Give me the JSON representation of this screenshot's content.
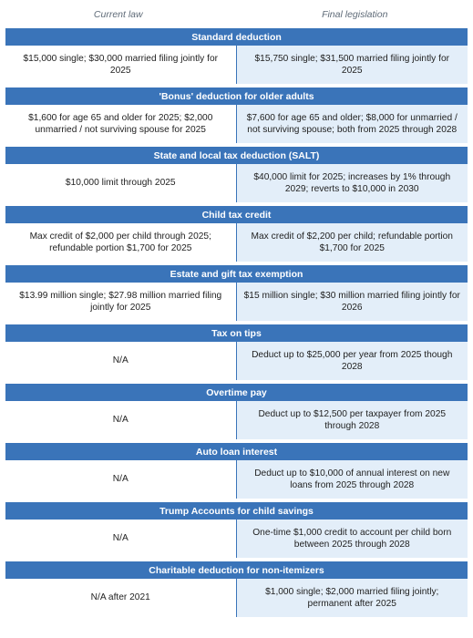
{
  "headers": {
    "current": "Current law",
    "final": "Final legislation"
  },
  "sections": [
    {
      "title": "Standard deduction",
      "current": "$15,000 single; $30,000 married filing jointly for 2025",
      "final": "$15,750 single; $31,500 married filing jointly for 2025"
    },
    {
      "title": "'Bonus' deduction for older adults",
      "current": "$1,600 for age 65 and older for 2025; $2,000 unmarried / not surviving spouse for 2025",
      "final": "$7,600 for age 65 and older; $8,000 for unmarried / not surviving spouse; both from 2025 through 2028"
    },
    {
      "title": "State and local tax deduction (SALT)",
      "current": "$10,000 limit through 2025",
      "final": "$40,000 limit for 2025; increases by 1% through 2029; reverts to $10,000 in 2030"
    },
    {
      "title": "Child tax credit",
      "current": "Max credit of $2,000 per child through 2025; refundable portion $1,700 for 2025",
      "final": "Max credit of $2,200 per child; refundable portion $1,700 for 2025"
    },
    {
      "title": "Estate and gift tax exemption",
      "current": "$13.99 million single; $27.98 million married filing jointly for 2025",
      "final": "$15 million single; $30 million married filing jointly for 2026"
    },
    {
      "title": "Tax on tips",
      "current": "N/A",
      "final": "Deduct up to $25,000 per year from 2025 though 2028"
    },
    {
      "title": "Overtime pay",
      "current": "N/A",
      "final": "Deduct up to $12,500 per taxpayer from 2025 through 2028"
    },
    {
      "title": "Auto loan interest",
      "current": "N/A",
      "final": "Deduct up to $10,000 of annual interest on new loans from 2025 through 2028"
    },
    {
      "title": "Trump Accounts for child savings",
      "current": "N/A",
      "final": "One-time $1,000 credit to account per child born between 2025 through 2028"
    },
    {
      "title": "Charitable deduction for non-itemizers",
      "current": "N/A after 2021",
      "final": "$1,000 single; $2,000 married filing jointly; permanent after 2025"
    }
  ]
}
